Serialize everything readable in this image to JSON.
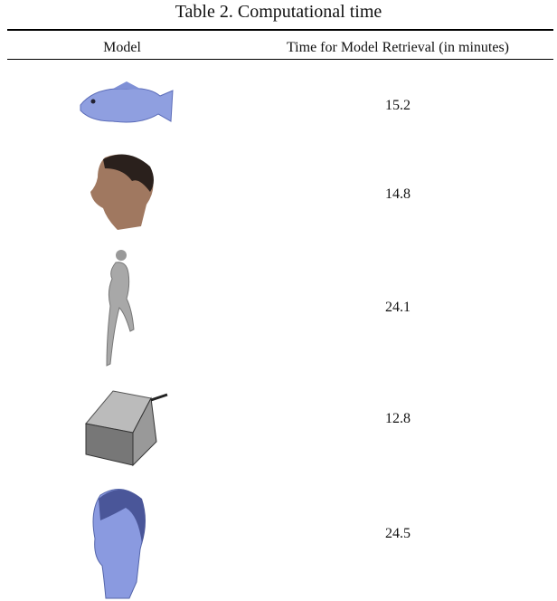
{
  "table": {
    "title": "Table 2. Computational time",
    "header": [
      "Model",
      "Time for Model Retrieval (in minutes)"
    ],
    "rows": [
      15.2,
      14.8,
      24.1,
      12.8,
      24.5
    ]
  }
}
